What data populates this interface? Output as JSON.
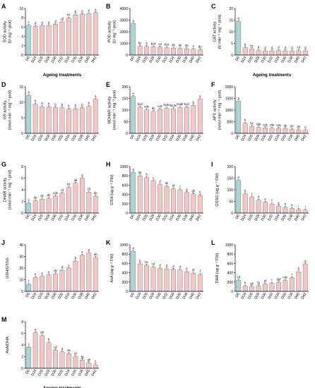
{
  "chart_data": [
    {
      "letter": "A",
      "type": "bar",
      "ylabel": [
        "SOD activity",
        "(U mg⁻¹ prot)"
      ],
      "yticks": [
        0,
        2,
        4,
        6,
        8,
        10
      ],
      "ylim": [
        0,
        10
      ],
      "xlabel": "Ageing treatments",
      "categories": [
        "D0",
        "D24",
        "D26",
        "D28",
        "D30",
        "D32",
        "D34",
        "D36",
        "D38",
        "D40",
        "D42"
      ],
      "values": [
        6.4,
        6.2,
        6.3,
        6.3,
        6.6,
        7.1,
        7.9,
        8.6,
        8.8,
        8.9,
        9.1
      ],
      "letters": [
        "c",
        "d",
        "d",
        "d",
        "d",
        "cd",
        "bc",
        "b",
        "a",
        "a",
        "a"
      ],
      "highlight": "#a9d6d2"
    },
    {
      "letter": "B",
      "type": "bar",
      "ylabel": [
        "POD activity",
        "(U mg⁻¹ prot)"
      ],
      "yticks": [
        0,
        1000,
        2000,
        3000,
        4000
      ],
      "ylim": [
        0,
        4000
      ],
      "xlabel": "",
      "categories": [
        "D0",
        "D24",
        "D26",
        "D28",
        "D30",
        "D32",
        "D34",
        "D36",
        "D38",
        "D40",
        "D42"
      ],
      "values": [
        2700,
        760,
        730,
        680,
        670,
        630,
        590,
        560,
        530,
        500,
        460
      ],
      "letters": [
        "a",
        "bc",
        "b",
        "bcd",
        "cd",
        "bcd",
        "de",
        "de",
        "de",
        "e",
        "de"
      ],
      "highlight": "#a9d6d2"
    },
    {
      "letter": "C",
      "type": "bar",
      "ylabel": [
        "CAT activity",
        "(U min⁻¹ mg⁻¹ prot)"
      ],
      "yticks": [
        0,
        5,
        10,
        15,
        20
      ],
      "ylim": [
        0,
        20
      ],
      "xlabel": "Ageing treatments",
      "categories": [
        "D0",
        "D24",
        "D26",
        "D28",
        "D30",
        "D32",
        "D34",
        "D36",
        "D38",
        "D40",
        "D42"
      ],
      "values": [
        14.5,
        3.2,
        2.6,
        1.9,
        1.8,
        1.8,
        1.9,
        1.8,
        1.8,
        1.9,
        1.8
      ],
      "letters": [
        "a",
        "b",
        "bc",
        "d",
        "d",
        "d",
        "d",
        "d",
        "d",
        "cd",
        "d"
      ],
      "highlight": "#a9d6d2"
    },
    {
      "letter": "D",
      "type": "bar",
      "ylabel": [
        "GR activity",
        "(nmol min⁻¹ mg⁻¹ prot)"
      ],
      "yticks": [
        0,
        5,
        10,
        15
      ],
      "ylim": [
        0,
        15
      ],
      "xlabel": "",
      "categories": [
        "D0",
        "D24",
        "D26",
        "D28",
        "D30",
        "D32",
        "D34",
        "D36",
        "D38",
        "D40",
        "D42"
      ],
      "values": [
        12.2,
        9.4,
        8.6,
        8.5,
        8.3,
        8.2,
        7.8,
        7.9,
        8.2,
        8.7,
        11.0
      ],
      "letters": [
        "a",
        "b",
        "b",
        "b",
        "b",
        "b",
        "b",
        "b",
        "b",
        "b",
        "a"
      ],
      "highlight": "#a9d6d2"
    },
    {
      "letter": "E",
      "type": "bar",
      "ylabel": [
        "MDHAR activity",
        "(nmol min⁻¹ mg⁻¹ prot)"
      ],
      "yticks": [
        0,
        50,
        100,
        150,
        200
      ],
      "ylim": [
        0,
        200
      ],
      "xlabel": "",
      "categories": [
        "D0",
        "D24",
        "D26",
        "D28",
        "D30",
        "D32",
        "D34",
        "D36",
        "D38",
        "D40",
        "D42"
      ],
      "values": [
        158,
        112,
        101,
        94,
        103,
        108,
        106,
        111,
        112,
        120,
        147
      ],
      "letters": [
        "a",
        "bcd",
        "cde",
        "de",
        "cde",
        "bcde",
        "bcde",
        "bcde",
        "bcd",
        "b",
        "a"
      ],
      "highlight": "#a9d6d2"
    },
    {
      "letter": "F",
      "type": "bar",
      "ylabel": [
        "APX activity",
        "(nmol min⁻¹ mg⁻¹ prot)"
      ],
      "yticks": [
        0,
        500,
        1000,
        1500,
        2000
      ],
      "ylim": [
        0,
        2000
      ],
      "xlabel": "",
      "categories": [
        "D0",
        "D24",
        "D26",
        "D28",
        "D30",
        "D32",
        "D34",
        "D36",
        "D38",
        "D40",
        "D42"
      ],
      "values": [
        1380,
        430,
        300,
        260,
        230,
        220,
        210,
        200,
        180,
        150,
        130
      ],
      "letters": [
        "a",
        "b",
        "bc",
        "cde",
        "cde",
        "cde",
        "cde",
        "de",
        "de",
        "de",
        "e"
      ],
      "highlight": "#a9d6d2"
    },
    {
      "letter": "G",
      "type": "bar",
      "ylabel": [
        "DHAR activity",
        "(nmol min⁻¹ mg⁻¹ prot)"
      ],
      "yticks": [
        0,
        2,
        4,
        6,
        8
      ],
      "ylim": [
        0,
        8
      ],
      "xlabel": "",
      "categories": [
        "D0",
        "D24",
        "D26",
        "D28",
        "D30",
        "D32",
        "D34",
        "D36",
        "D38",
        "D40",
        "D42"
      ],
      "values": [
        1.7,
        2.1,
        2.4,
        2.5,
        2.9,
        3.4,
        4.4,
        5.1,
        6.0,
        3.6,
        2.9
      ],
      "letters": [
        "e",
        "de",
        "de",
        "de",
        "cde",
        "cd",
        "bc",
        "ab",
        "a",
        "cd",
        "de"
      ],
      "highlight": "#a9d6d2"
    },
    {
      "letter": "H",
      "type": "bar",
      "ylabel": [
        "GSH (ug g⁻¹ FW)"
      ],
      "yticks": [
        0,
        200,
        400,
        600,
        800,
        1000
      ],
      "ylim": [
        0,
        1000
      ],
      "xlabel": "",
      "categories": [
        "D0",
        "D24",
        "D26",
        "D28",
        "D30",
        "D32",
        "D34",
        "D36",
        "D38",
        "D40",
        "D42"
      ],
      "values": [
        870,
        800,
        760,
        690,
        610,
        570,
        520,
        500,
        440,
        410,
        380
      ],
      "letters": [
        "a",
        "ab",
        "b",
        "c",
        "d",
        "de",
        "ef",
        "f",
        "g",
        "gh",
        "h"
      ],
      "highlight": "#a9d6d2"
    },
    {
      "letter": "I",
      "type": "bar",
      "ylabel": [
        "GSSG (ug g⁻¹ FW)"
      ],
      "yticks": [
        0,
        50,
        100,
        150,
        200
      ],
      "ylim": [
        0,
        200
      ],
      "xlabel": "",
      "categories": [
        "D0",
        "D24",
        "D26",
        "D28",
        "D30",
        "D32",
        "D34",
        "D36",
        "D38",
        "D40",
        "D42"
      ],
      "values": [
        140,
        82,
        68,
        55,
        46,
        39,
        30,
        24,
        19,
        15,
        13
      ],
      "letters": [
        "a",
        "b",
        "c",
        "d",
        "e",
        "f",
        "g",
        "h",
        "h",
        "i",
        "i"
      ],
      "highlight": "#a9d6d2"
    },
    {
      "letter": "J",
      "type": "bar",
      "ylabel": [
        "GSH/GSSG"
      ],
      "yticks": [
        0,
        10,
        20,
        30,
        40
      ],
      "ylim": [
        0,
        40
      ],
      "xlabel": "",
      "categories": [
        "D0",
        "D24",
        "D26",
        "D28",
        "D30",
        "D32",
        "D34",
        "D36",
        "D38",
        "D40",
        "D42"
      ],
      "values": [
        6,
        12,
        13,
        14,
        15,
        18,
        20,
        26,
        31,
        33,
        29
      ],
      "letters": [
        "f",
        "e",
        "e",
        "e",
        "de",
        "d",
        "c",
        "b",
        "a",
        "a",
        "ab"
      ],
      "highlight": "#a9d6d2"
    },
    {
      "letter": "K",
      "type": "bar",
      "ylabel": [
        "AsA (ug g⁻¹ FW)"
      ],
      "yticks": [
        0,
        200,
        400,
        600,
        800,
        1000
      ],
      "ylim": [
        0,
        1000
      ],
      "xlabel": "",
      "categories": [
        "D0",
        "D24",
        "D26",
        "D28",
        "D30",
        "D32",
        "D34",
        "D36",
        "D38",
        "D40",
        "D42"
      ],
      "values": [
        860,
        590,
        560,
        520,
        490,
        480,
        470,
        460,
        420,
        390,
        360
      ],
      "letters": [
        "a",
        "b",
        "bc",
        "cd",
        "d",
        "d",
        "d",
        "d",
        "e",
        "ef",
        "f"
      ],
      "highlight": "#a9d6d2"
    },
    {
      "letter": "L",
      "type": "bar",
      "ylabel": [
        "DHA (ug g⁻¹ FW)"
      ],
      "yticks": [
        0,
        200,
        400,
        600,
        800,
        1000
      ],
      "ylim": [
        0,
        1000
      ],
      "xlabel": "",
      "categories": [
        "D0",
        "D24",
        "D26",
        "D28",
        "D30",
        "D32",
        "D34",
        "D36",
        "D38",
        "D40",
        "D42"
      ],
      "values": [
        240,
        110,
        100,
        120,
        160,
        170,
        190,
        230,
        290,
        420,
        590
      ],
      "letters": [
        "cd",
        "h",
        "gh",
        "fg",
        "ef",
        "f",
        "def",
        "cde",
        "c",
        "b",
        "a"
      ],
      "highlight": "#a9d6d2"
    },
    {
      "letter": "M",
      "type": "bar",
      "ylabel": [
        "AsA/DHA"
      ],
      "yticks": [
        0,
        2,
        4,
        6,
        8
      ],
      "ylim": [
        0,
        8
      ],
      "xlabel": "Ageing treatments",
      "categories": [
        "D0",
        "D24",
        "D26",
        "D28",
        "D30",
        "D32",
        "D34",
        "D36",
        "D38",
        "D40",
        "D42"
      ],
      "values": [
        3.6,
        6.1,
        5.6,
        4.4,
        3.1,
        2.8,
        2.5,
        2.0,
        1.4,
        0.9,
        0.6
      ],
      "letters": [
        "c",
        "a",
        "ab",
        "b",
        "cd",
        "d",
        "de",
        "ef",
        "fg",
        "gh",
        "h"
      ],
      "highlight": "#a9d6d2"
    }
  ],
  "colors": {
    "first_bar": "#a9d6d2",
    "bars": "#f0c6c6",
    "bar_stroke": "#7a6a6a",
    "axis": "#000000"
  }
}
